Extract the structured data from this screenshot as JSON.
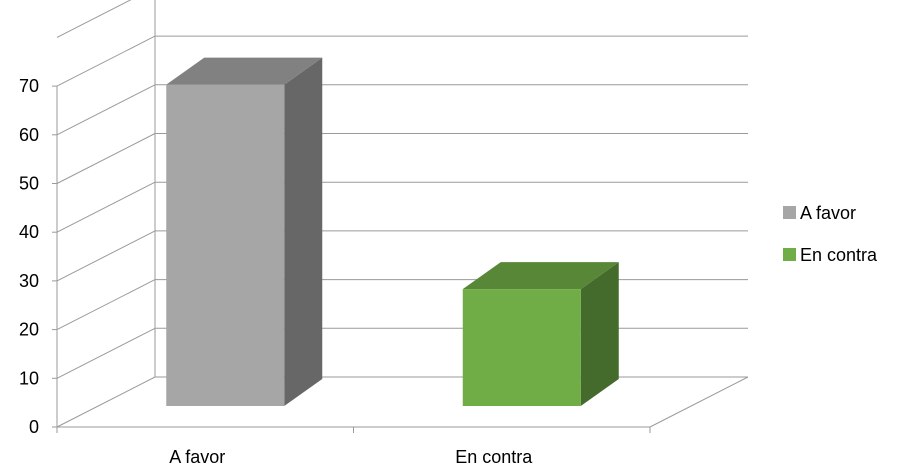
{
  "chart_data": {
    "type": "bar",
    "style": "3d-column",
    "title": "",
    "xlabel": "",
    "ylabel": "",
    "categories": [
      "A favor",
      "En contra"
    ],
    "values": [
      66,
      24
    ],
    "series_colors": [
      "#a6a6a6",
      "#70ad47"
    ],
    "yticks": [
      "0",
      "10",
      "20",
      "30",
      "40",
      "50",
      "60",
      "70"
    ],
    "ylim": [
      0,
      70
    ],
    "grid": true,
    "legend": {
      "position": "right",
      "entries": [
        {
          "label": "A favor",
          "color": "#a6a6a6"
        },
        {
          "label": "En contra",
          "color": "#70ad47"
        }
      ]
    }
  }
}
